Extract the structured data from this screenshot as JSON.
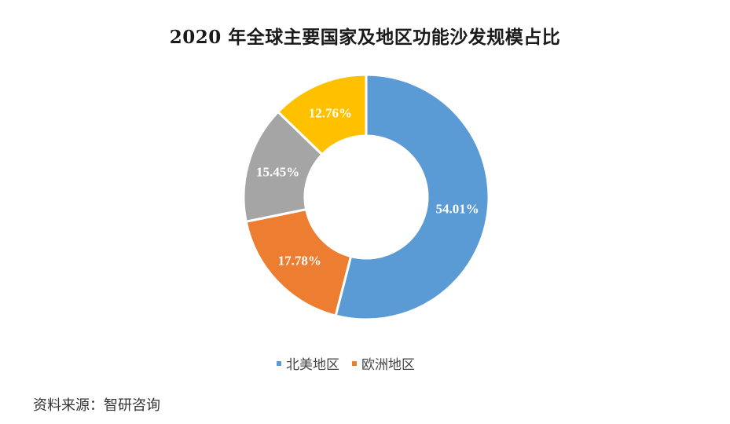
{
  "chart_data": {
    "type": "pie",
    "variant": "donut",
    "title": "2020年全球主要国家及地区功能沙发规模占比",
    "slices": [
      {
        "label": "北美地区",
        "value": 54.01,
        "display": "54.01%",
        "color": "#5B9BD5"
      },
      {
        "label": "欧洲地区",
        "value": 17.78,
        "display": "17.78%",
        "color": "#ED7D31"
      },
      {
        "label": "",
        "value": 15.45,
        "display": "15.45%",
        "color": "#A5A5A5"
      },
      {
        "label": "",
        "value": 12.76,
        "display": "12.76%",
        "color": "#FFC000"
      }
    ],
    "legend": [
      "北美地区",
      "欧洲地区"
    ],
    "legend_position": "bottom",
    "start_angle_deg": 0,
    "direction": "clockwise"
  },
  "title": "2020 年全球主要国家及地区功能沙发规模占比",
  "legend": [
    {
      "label": "北美地区",
      "color": "#5B9BD5"
    },
    {
      "label": "欧洲地区",
      "color": "#ED7D31"
    }
  ],
  "source": "资料来源：智研咨询"
}
